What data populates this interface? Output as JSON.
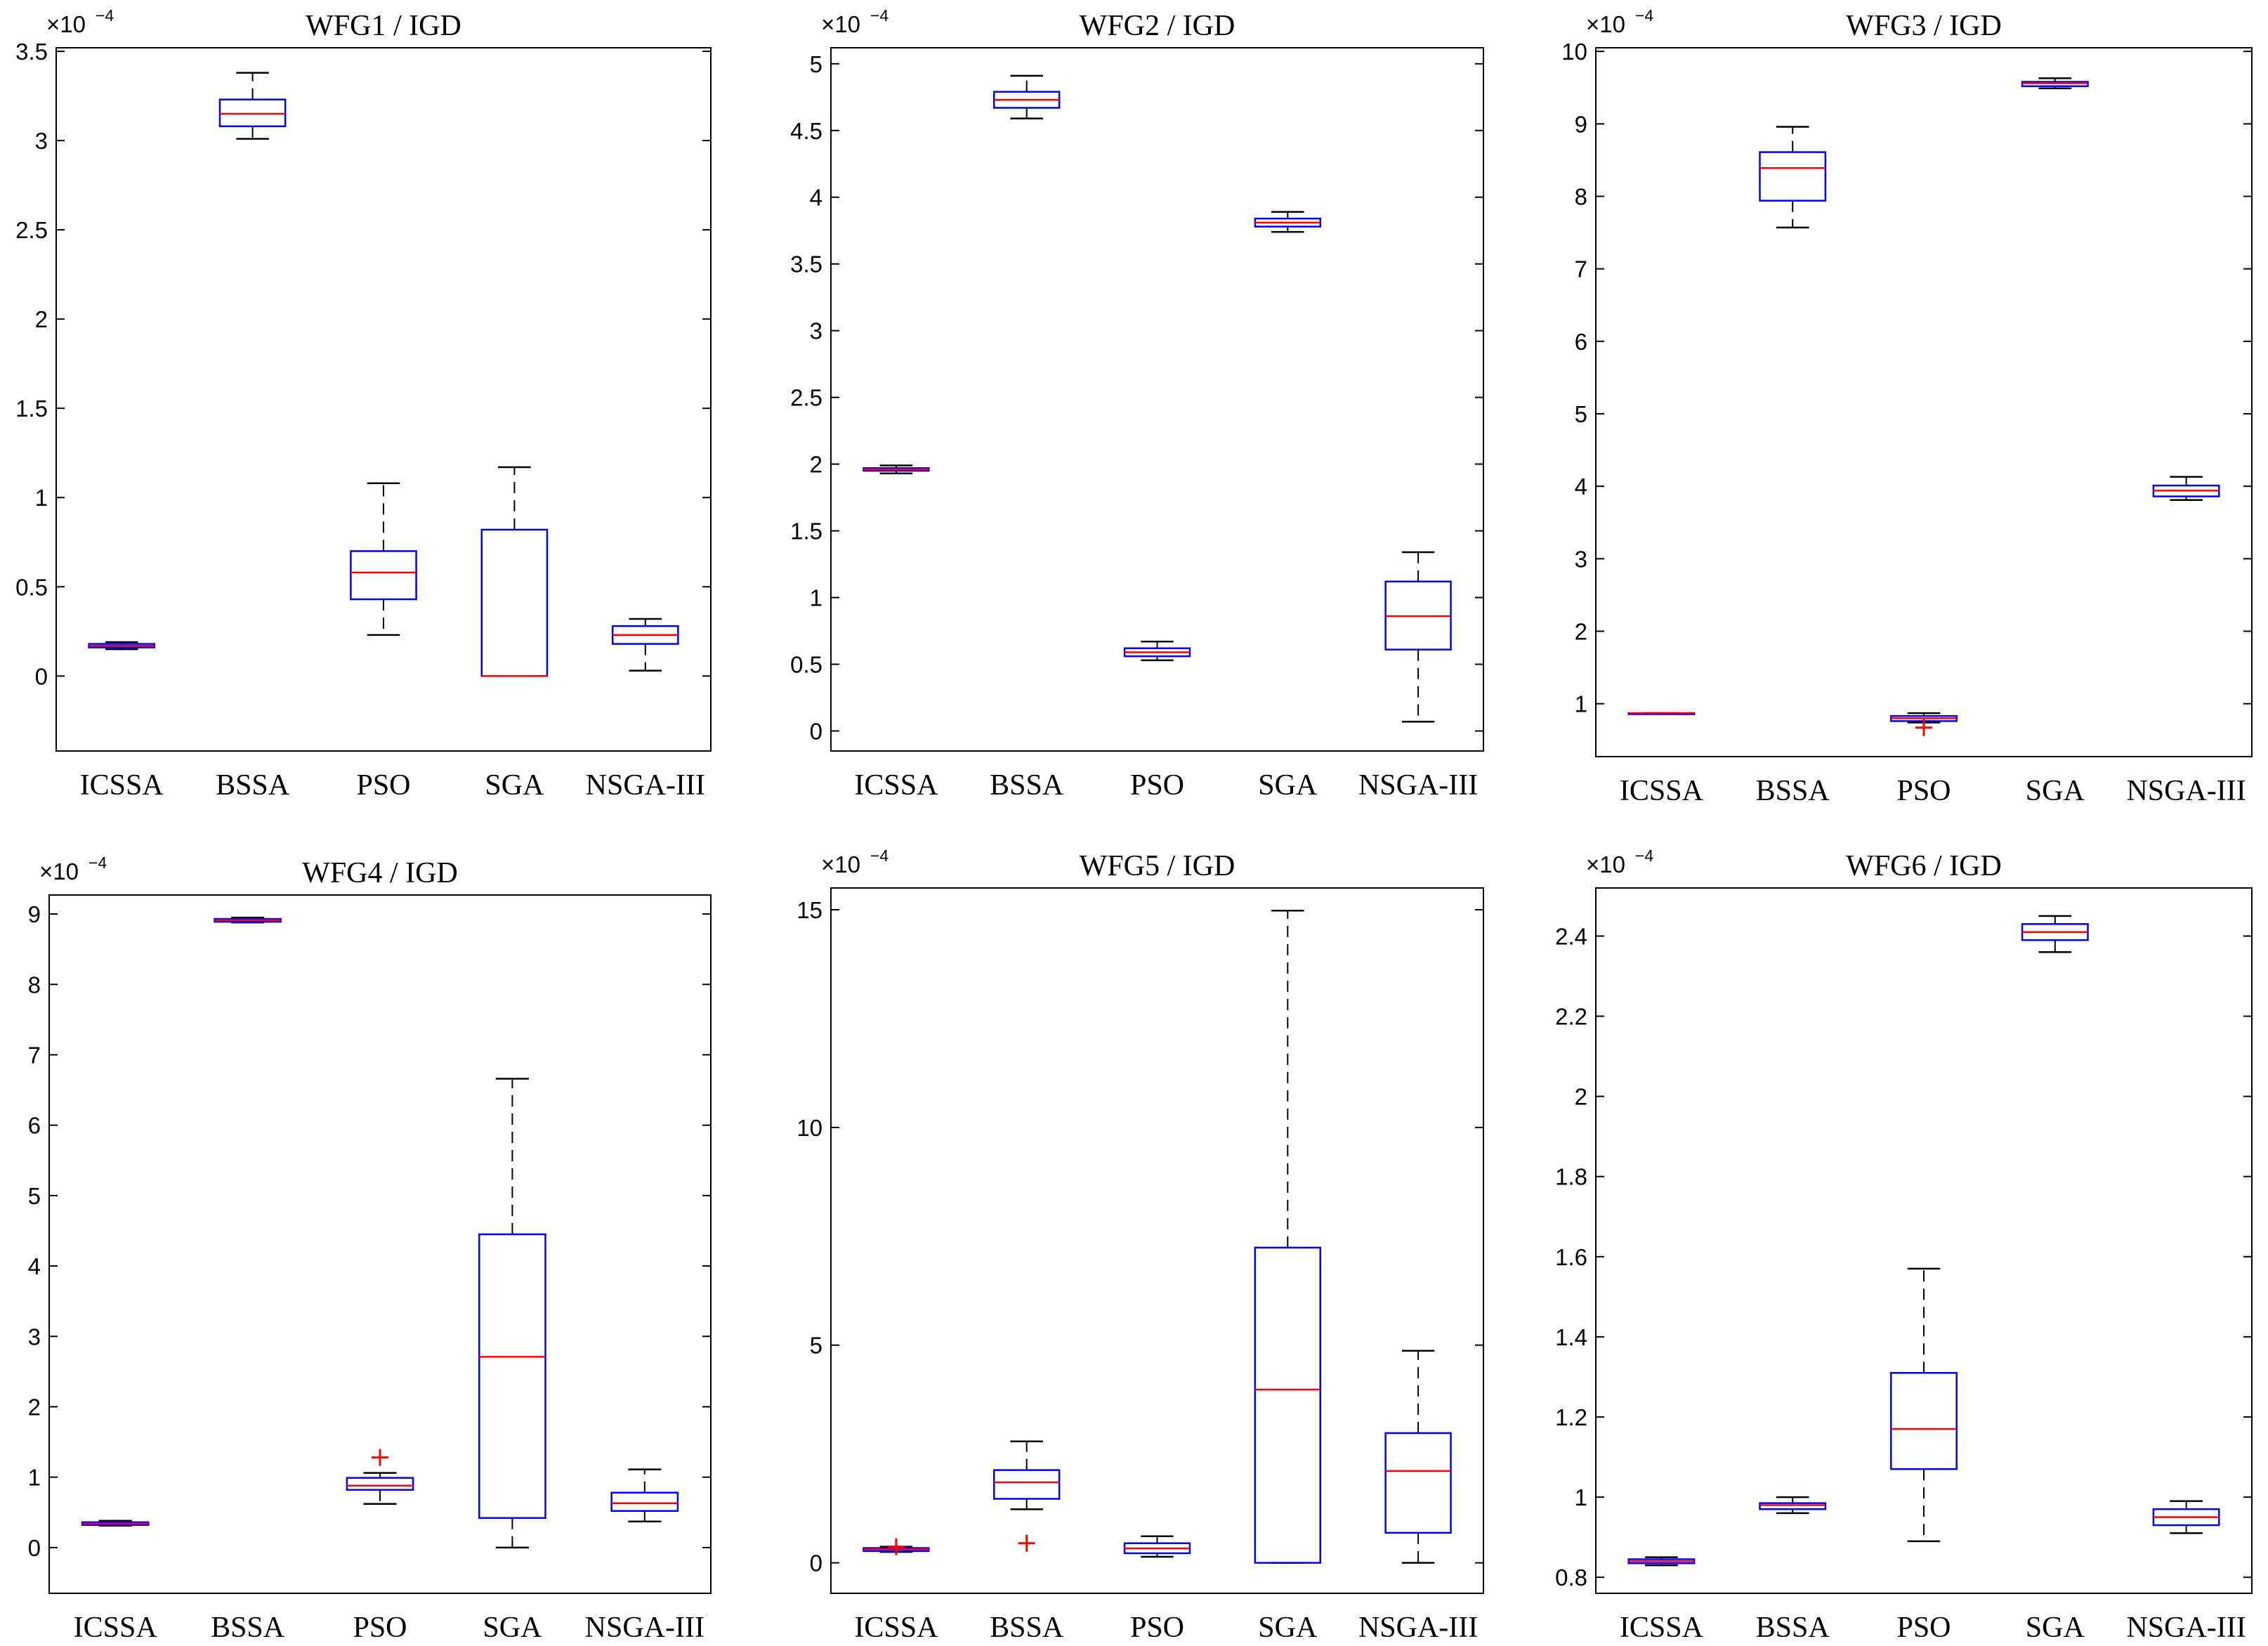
{
  "colors": {
    "box": "#0000ff",
    "median": "#ff0000",
    "whisker": "#000000",
    "outlier": "#ff0000"
  },
  "chart_data": [
    {
      "type": "box",
      "title": "WFG1 / IGD",
      "multiplier": {
        "base": "×10",
        "exp": "−4"
      },
      "categories": [
        "ICSSA",
        "BSSA",
        "PSO",
        "SGA",
        "NSGA-III"
      ],
      "ylim": [
        -0.42,
        3.52
      ],
      "yticks": [
        0,
        0.5,
        1,
        1.5,
        2,
        2.5,
        3,
        3.5
      ],
      "ytick_labels": [
        "0",
        "0.5",
        "1",
        "1.5",
        "2",
        "2.5",
        "3",
        "3.5"
      ],
      "boxes": [
        {
          "whislo": 0.15,
          "q1": 0.16,
          "med": 0.17,
          "q3": 0.18,
          "whishi": 0.19,
          "outliers": []
        },
        {
          "whislo": 3.01,
          "q1": 3.08,
          "med": 3.15,
          "q3": 3.23,
          "whishi": 3.38,
          "outliers": []
        },
        {
          "whislo": 0.23,
          "q1": 0.43,
          "med": 0.58,
          "q3": 0.7,
          "whishi": 1.08,
          "outliers": []
        },
        {
          "whislo": 0.0,
          "q1": 0.0,
          "med": 0.0,
          "q3": 0.82,
          "whishi": 1.17,
          "outliers": []
        },
        {
          "whislo": 0.03,
          "q1": 0.18,
          "med": 0.23,
          "q3": 0.28,
          "whishi": 0.32,
          "outliers": []
        }
      ]
    },
    {
      "type": "box",
      "title": "WFG2 / IGD",
      "multiplier": {
        "base": "×10",
        "exp": "−4"
      },
      "categories": [
        "ICSSA",
        "BSSA",
        "PSO",
        "SGA",
        "NSGA-III"
      ],
      "ylim": [
        -0.15,
        5.12
      ],
      "yticks": [
        0,
        0.5,
        1,
        1.5,
        2,
        2.5,
        3,
        3.5,
        4,
        4.5,
        5
      ],
      "ytick_labels": [
        "0",
        "0.5",
        "1",
        "1.5",
        "2",
        "2.5",
        "3",
        "3.5",
        "4",
        "4.5",
        "5"
      ],
      "boxes": [
        {
          "whislo": 1.93,
          "q1": 1.95,
          "med": 1.96,
          "q3": 1.97,
          "whishi": 1.99,
          "outliers": []
        },
        {
          "whislo": 4.59,
          "q1": 4.67,
          "med": 4.73,
          "q3": 4.79,
          "whishi": 4.91,
          "outliers": []
        },
        {
          "whislo": 0.53,
          "q1": 0.56,
          "med": 0.59,
          "q3": 0.62,
          "whishi": 0.67,
          "outliers": []
        },
        {
          "whislo": 3.74,
          "q1": 3.78,
          "med": 3.81,
          "q3": 3.84,
          "whishi": 3.89,
          "outliers": []
        },
        {
          "whislo": 0.07,
          "q1": 0.61,
          "med": 0.86,
          "q3": 1.12,
          "whishi": 1.34,
          "outliers": []
        }
      ]
    },
    {
      "type": "box",
      "title": "WFG3 / IGD",
      "multiplier": {
        "base": "×10",
        "exp": "−4"
      },
      "categories": [
        "ICSSA",
        "BSSA",
        "PSO",
        "SGA",
        "NSGA-III"
      ],
      "ylim": [
        0.27,
        10.05
      ],
      "yticks": [
        1,
        2,
        3,
        4,
        5,
        6,
        7,
        8,
        9,
        10
      ],
      "ytick_labels": [
        "1",
        "2",
        "3",
        "4",
        "5",
        "6",
        "7",
        "8",
        "9",
        "10"
      ],
      "boxes": [
        {
          "whislo": 0.87,
          "q1": 0.87,
          "med": 0.87,
          "q3": 0.87,
          "whishi": 0.87,
          "outliers": []
        },
        {
          "whislo": 7.57,
          "q1": 7.94,
          "med": 8.39,
          "q3": 8.61,
          "whishi": 8.96,
          "outliers": []
        },
        {
          "whislo": 0.74,
          "q1": 0.76,
          "med": 0.8,
          "q3": 0.83,
          "whishi": 0.87,
          "outliers": [
            0.67
          ]
        },
        {
          "whislo": 9.49,
          "q1": 9.52,
          "med": 9.56,
          "q3": 9.58,
          "whishi": 9.63,
          "outliers": []
        },
        {
          "whislo": 3.81,
          "q1": 3.86,
          "med": 3.94,
          "q3": 4.01,
          "whishi": 4.13,
          "outliers": []
        }
      ]
    },
    {
      "type": "box",
      "title": "WFG4 / IGD",
      "multiplier": {
        "base": "×10",
        "exp": "−4"
      },
      "categories": [
        "ICSSA",
        "BSSA",
        "PSO",
        "SGA",
        "NSGA-III"
      ],
      "ylim": [
        -0.65,
        9.27
      ],
      "yticks": [
        0,
        1,
        2,
        3,
        4,
        5,
        6,
        7,
        8,
        9
      ],
      "ytick_labels": [
        "0",
        "1",
        "2",
        "3",
        "4",
        "5",
        "6",
        "7",
        "8",
        "9"
      ],
      "boxes": [
        {
          "whislo": 0.31,
          "q1": 0.32,
          "med": 0.34,
          "q3": 0.36,
          "whishi": 0.38,
          "outliers": []
        },
        {
          "whislo": 8.88,
          "q1": 8.89,
          "med": 8.91,
          "q3": 8.93,
          "whishi": 8.95,
          "outliers": []
        },
        {
          "whislo": 0.62,
          "q1": 0.82,
          "med": 0.88,
          "q3": 0.99,
          "whishi": 1.06,
          "outliers": [
            1.28
          ]
        },
        {
          "whislo": 0.0,
          "q1": 0.42,
          "med": 2.71,
          "q3": 4.45,
          "whishi": 6.66,
          "outliers": []
        },
        {
          "whislo": 0.37,
          "q1": 0.52,
          "med": 0.63,
          "q3": 0.78,
          "whishi": 1.11,
          "outliers": []
        }
      ]
    },
    {
      "type": "box",
      "title": "WFG5 / IGD",
      "multiplier": {
        "base": "×10",
        "exp": "−4"
      },
      "categories": [
        "ICSSA",
        "BSSA",
        "PSO",
        "SGA",
        "NSGA-III"
      ],
      "ylim": [
        -0.7,
        15.5
      ],
      "yticks": [
        0,
        5,
        10,
        15
      ],
      "ytick_labels": [
        "0",
        "5",
        "10",
        "15"
      ],
      "boxes": [
        {
          "whislo": 0.25,
          "q1": 0.27,
          "med": 0.31,
          "q3": 0.34,
          "whishi": 0.37,
          "outliers": [
            0.37
          ]
        },
        {
          "whislo": 1.23,
          "q1": 1.47,
          "med": 1.85,
          "q3": 2.13,
          "whishi": 2.79,
          "outliers": [
            0.45
          ]
        },
        {
          "whislo": 0.14,
          "q1": 0.22,
          "med": 0.33,
          "q3": 0.45,
          "whishi": 0.61,
          "outliers": []
        },
        {
          "whislo": 0.0,
          "q1": 0.0,
          "med": 3.98,
          "q3": 7.24,
          "whishi": 14.98,
          "outliers": []
        },
        {
          "whislo": 0.0,
          "q1": 0.69,
          "med": 2.11,
          "q3": 2.98,
          "whishi": 4.87,
          "outliers": []
        }
      ]
    },
    {
      "type": "box",
      "title": "WFG6 / IGD",
      "multiplier": {
        "base": "×10",
        "exp": "−4"
      },
      "categories": [
        "ICSSA",
        "BSSA",
        "PSO",
        "SGA",
        "NSGA-III"
      ],
      "ylim": [
        0.76,
        2.52
      ],
      "yticks": [
        0.8,
        1,
        1.2,
        1.4,
        1.6,
        1.8,
        2,
        2.2,
        2.4
      ],
      "ytick_labels": [
        "0.8",
        "1",
        "1.2",
        "1.4",
        "1.6",
        "1.8",
        "2",
        "2.2",
        "2.4"
      ],
      "boxes": [
        {
          "whislo": 0.83,
          "q1": 0.835,
          "med": 0.84,
          "q3": 0.845,
          "whishi": 0.85,
          "outliers": []
        },
        {
          "whislo": 0.96,
          "q1": 0.97,
          "med": 0.98,
          "q3": 0.985,
          "whishi": 1.0,
          "outliers": []
        },
        {
          "whislo": 0.89,
          "q1": 1.07,
          "med": 1.17,
          "q3": 1.31,
          "whishi": 1.57,
          "outliers": []
        },
        {
          "whislo": 2.36,
          "q1": 2.39,
          "med": 2.41,
          "q3": 2.43,
          "whishi": 2.45,
          "outliers": []
        },
        {
          "whislo": 0.91,
          "q1": 0.93,
          "med": 0.95,
          "q3": 0.97,
          "whishi": 0.99,
          "outliers": []
        }
      ]
    }
  ]
}
